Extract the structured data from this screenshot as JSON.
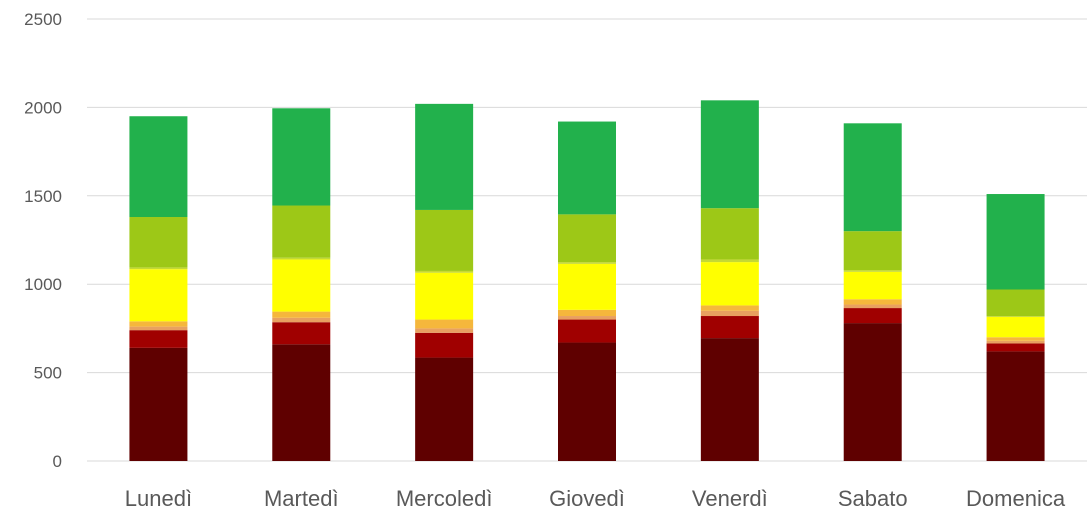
{
  "chart_data": {
    "type": "bar",
    "stacked": true,
    "categories": [
      "Lunedì",
      "Martedì",
      "Mercoledì",
      "Giovedì",
      "Venerdì",
      "Sabato",
      "Domenica"
    ],
    "series": [
      {
        "color": "#5f0000",
        "values": [
          640,
          660,
          585,
          670,
          695,
          780,
          620
        ]
      },
      {
        "color": "#a00000",
        "values": [
          100,
          125,
          140,
          130,
          125,
          85,
          45
        ]
      },
      {
        "color": "#e8a060",
        "values": [
          20,
          25,
          25,
          20,
          30,
          20,
          15
        ]
      },
      {
        "color": "#f5b73c",
        "values": [
          30,
          35,
          50,
          35,
          30,
          30,
          20
        ]
      },
      {
        "color": "#ffff00",
        "values": [
          295,
          295,
          265,
          260,
          245,
          155,
          115
        ]
      },
      {
        "color": "#c4d934",
        "values": [
          10,
          10,
          10,
          10,
          15,
          10,
          5
        ]
      },
      {
        "color": "#9dc817",
        "values": [
          285,
          295,
          345,
          270,
          290,
          220,
          150
        ]
      },
      {
        "color": "#22b14c",
        "values": [
          570,
          550,
          600,
          525,
          610,
          610,
          540
        ]
      }
    ],
    "ylim": [
      0,
      2500
    ],
    "yticks": [
      0,
      500,
      1000,
      1500,
      2000,
      2500
    ],
    "grid": true,
    "legend": "none"
  }
}
